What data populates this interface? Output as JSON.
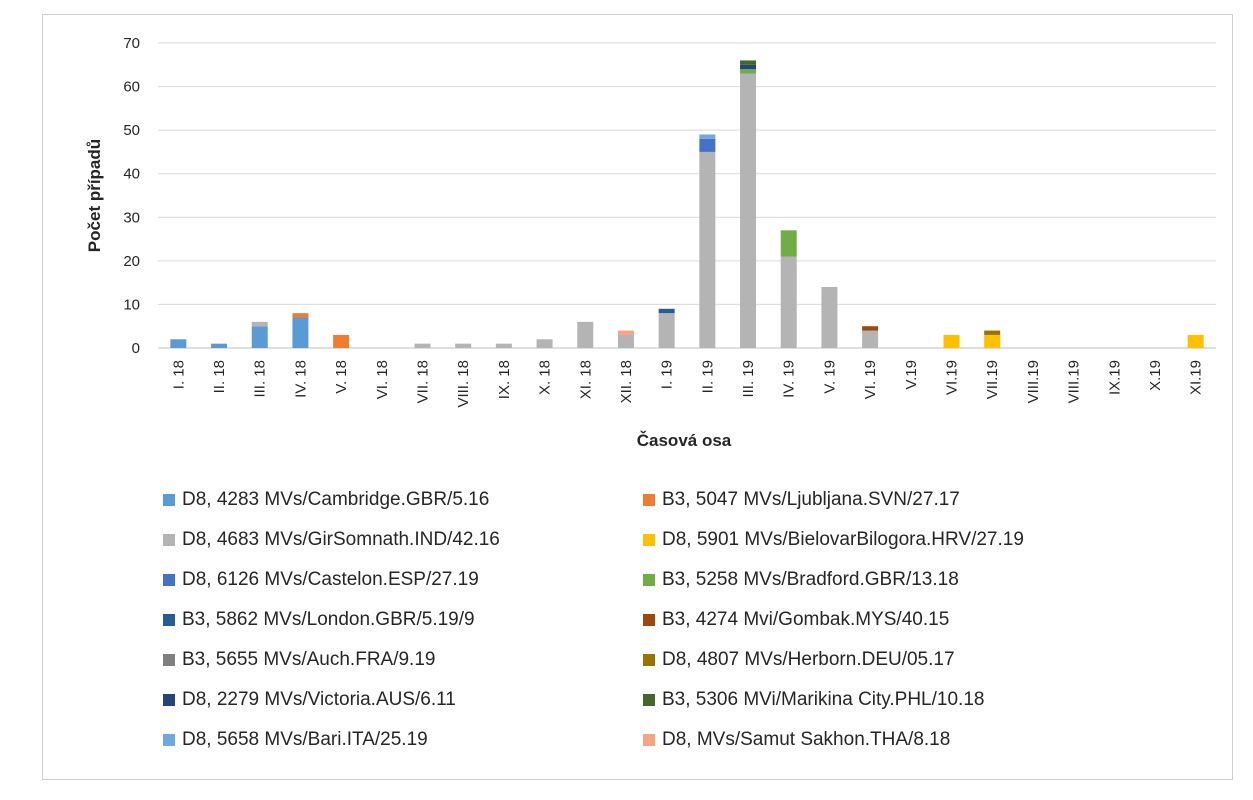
{
  "chart_data": {
    "type": "bar",
    "stacked": true,
    "xlabel": "Časová osa",
    "ylabel": "Počet případů",
    "ylim": [
      0,
      70
    ],
    "yticks": [
      0,
      10,
      20,
      30,
      40,
      50,
      60,
      70
    ],
    "grid": true,
    "legend_position": "bottom",
    "categories": [
      "I. 18",
      "II. 18",
      "III. 18",
      "IV. 18",
      "V. 18",
      "VI. 18",
      "VII. 18",
      "VIII. 18",
      "IX. 18",
      "X. 18",
      "XI. 18",
      "XII. 18",
      "I. 19",
      "II. 19",
      "III. 19",
      "IV. 19",
      "V. 19",
      "VI. 19",
      "V.19",
      "VI.19",
      "VII.19",
      "VIII.19",
      "VIII.19",
      "IX.19",
      "X.19",
      "XI.19"
    ],
    "series": [
      {
        "name": "D8, 4283 MVs/Cambridge.GBR/5.16",
        "color": "#5b9bd5",
        "values": [
          2,
          1,
          5,
          7,
          0,
          0,
          0,
          0,
          0,
          0,
          0,
          0,
          0,
          0,
          0,
          0,
          0,
          0,
          0,
          0,
          0,
          0,
          0,
          0,
          0,
          0
        ]
      },
      {
        "name": "B3, 5047 MVs/Ljubljana.SVN/27.17",
        "color": "#ed7d31",
        "values": [
          0,
          0,
          0,
          1,
          3,
          0,
          0,
          0,
          0,
          0,
          0,
          0,
          0,
          0,
          0,
          0,
          0,
          0,
          0,
          0,
          0,
          0,
          0,
          0,
          0,
          0
        ]
      },
      {
        "name": "D8, 4683 MVs/GirSomnath.IND/42.16",
        "color": "#b4b4b4",
        "values": [
          0,
          0,
          1,
          0,
          0,
          0,
          1,
          1,
          1,
          2,
          6,
          3,
          8,
          45,
          63,
          21,
          14,
          4,
          0,
          0,
          0,
          0,
          0,
          0,
          0,
          0
        ]
      },
      {
        "name": "D8, 5901 MVs/BielovarBilogora.HRV/27.19",
        "color": "#ffc000",
        "values": [
          0,
          0,
          0,
          0,
          0,
          0,
          0,
          0,
          0,
          0,
          0,
          0,
          0,
          0,
          0,
          0,
          0,
          0,
          0,
          3,
          3,
          0,
          0,
          0,
          0,
          3
        ]
      },
      {
        "name": "D8, 6126 MVs/Castelon.ESP/27.19",
        "color": "#4472c4",
        "values": [
          0,
          0,
          0,
          0,
          0,
          0,
          0,
          0,
          0,
          0,
          0,
          0,
          0,
          3,
          0,
          0,
          0,
          0,
          0,
          0,
          0,
          0,
          0,
          0,
          0,
          0
        ]
      },
      {
        "name": "B3, 5258 MVs/Bradford.GBR/13.18",
        "color": "#70ad47",
        "values": [
          0,
          0,
          0,
          0,
          0,
          0,
          0,
          0,
          0,
          0,
          0,
          0,
          0,
          0,
          1,
          6,
          0,
          0,
          0,
          0,
          0,
          0,
          0,
          0,
          0,
          0
        ]
      },
      {
        "name": "B3, 5862 MVs/London.GBR/5.19/9",
        "color": "#255e91",
        "values": [
          0,
          0,
          0,
          0,
          0,
          0,
          0,
          0,
          0,
          0,
          0,
          0,
          1,
          0,
          0,
          0,
          0,
          0,
          0,
          0,
          0,
          0,
          0,
          0,
          0,
          0
        ]
      },
      {
        "name": "B3, 4274 Mvi/Gombak.MYS/40.15",
        "color": "#9e480e",
        "values": [
          0,
          0,
          0,
          0,
          0,
          0,
          0,
          0,
          0,
          0,
          0,
          0,
          0,
          0,
          0,
          0,
          0,
          1,
          0,
          0,
          0,
          0,
          0,
          0,
          0,
          0
        ]
      },
      {
        "name": "B3, 5655 MVs/Auch.FRA/9.19",
        "color": "#7f7f7f",
        "values": [
          0,
          0,
          0,
          0,
          0,
          0,
          0,
          0,
          0,
          0,
          0,
          0,
          0,
          0,
          0,
          0,
          0,
          0,
          0,
          0,
          0,
          0,
          0,
          0,
          0,
          0
        ]
      },
      {
        "name": "D8, 4807 MVs/Herborn.DEU/05.17",
        "color": "#997300",
        "values": [
          0,
          0,
          0,
          0,
          0,
          0,
          0,
          0,
          0,
          0,
          0,
          0,
          0,
          0,
          0,
          0,
          0,
          0,
          0,
          0,
          1,
          0,
          0,
          0,
          0,
          0
        ]
      },
      {
        "name": "D8, 2279 MVs/Victoria.AUS/6.11",
        "color": "#264478",
        "values": [
          0,
          0,
          0,
          0,
          0,
          0,
          0,
          0,
          0,
          0,
          0,
          0,
          0,
          0,
          1,
          0,
          0,
          0,
          0,
          0,
          0,
          0,
          0,
          0,
          0,
          0
        ]
      },
      {
        "name": "B3, 5306 MVi/Marikina City.PHL/10.18",
        "color": "#43682b",
        "values": [
          0,
          0,
          0,
          0,
          0,
          0,
          0,
          0,
          0,
          0,
          0,
          0,
          0,
          0,
          1,
          0,
          0,
          0,
          0,
          0,
          0,
          0,
          0,
          0,
          0,
          0
        ]
      },
      {
        "name": "D8, 5658 MVs/Bari.ITA/25.19",
        "color": "#6fa8dc",
        "values": [
          0,
          0,
          0,
          0,
          0,
          0,
          0,
          0,
          0,
          0,
          0,
          0,
          0,
          1,
          0,
          0,
          0,
          0,
          0,
          0,
          0,
          0,
          0,
          0,
          0,
          0
        ]
      },
      {
        "name": "D8, MVs/Samut Sakhon.THA/8.18",
        "color": "#f4a582",
        "values": [
          0,
          0,
          0,
          0,
          0,
          0,
          0,
          0,
          0,
          0,
          0,
          1,
          0,
          0,
          0,
          0,
          0,
          0,
          0,
          0,
          0,
          0,
          0,
          0,
          0,
          0
        ]
      }
    ],
    "legend_order": [
      0,
      1,
      2,
      3,
      4,
      5,
      6,
      7,
      8,
      9,
      10,
      11,
      12,
      13
    ]
  }
}
